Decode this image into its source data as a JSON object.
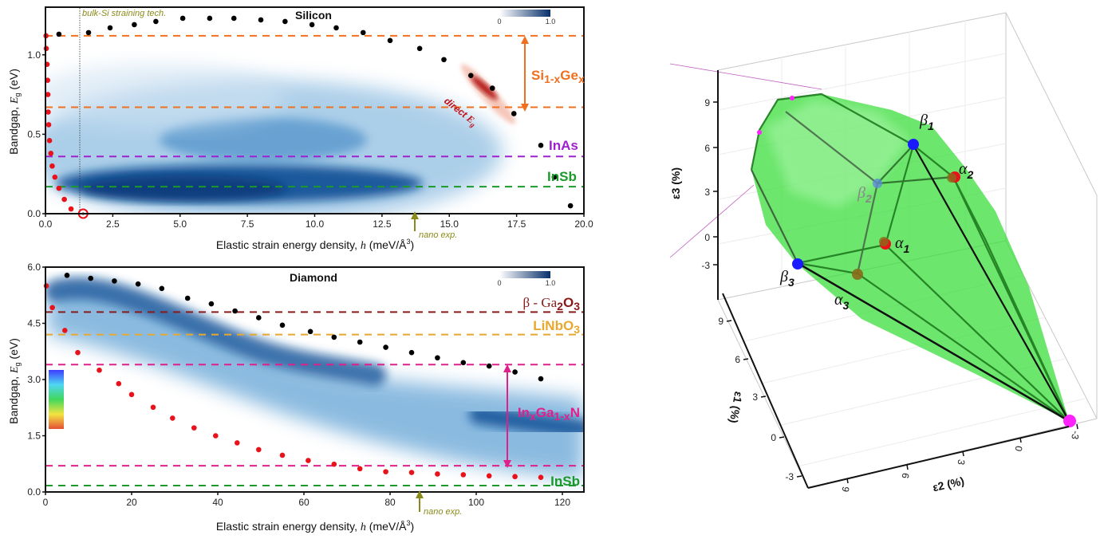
{
  "chart_data": [
    {
      "type": "scatter",
      "panel": "top-left",
      "title": "Silicon",
      "xlabel": "Elastic strain energy density, h (meV/Å³)",
      "ylabel": "Bandgap, E_g (eV)",
      "ylabel_prefix": "Bandgap, ",
      "ylabel_sym": "E",
      "ylabel_sub": "g",
      "ylabel_unit": " (eV)",
      "xlabel_prefix": "Elastic strain energy density, ",
      "xlabel_sym": "h",
      "xlabel_unit": " (meV/Å",
      "xlabel_sup": "3",
      "xlabel_close": ")",
      "xlim": [
        0,
        20
      ],
      "ylim": [
        0,
        1.3
      ],
      "xticks": [
        0.0,
        2.5,
        5.0,
        7.5,
        10.0,
        12.5,
        15.0,
        17.5,
        20.0
      ],
      "xtick_labels": [
        "0.0",
        "2.5",
        "5.0",
        "7.5",
        "10.0",
        "12.5",
        "15.0",
        "17.5",
        "20.0"
      ],
      "yticks": [
        0.0,
        0.5,
        1.0
      ],
      "ytick_labels": [
        "0.0",
        "0.5",
        "1.0"
      ],
      "colorbar": {
        "min_label": "0",
        "max_label": "1.0",
        "colormap": "Blues"
      },
      "series": [
        {
          "name": "max bandgap",
          "color": "#000000",
          "x": [
            0.5,
            1.6,
            2.4,
            3.3,
            4.1,
            5.1,
            6.1,
            7.0,
            8.0,
            8.9,
            9.9,
            10.8,
            11.8,
            12.8,
            13.9,
            14.8,
            15.8,
            16.6,
            17.4,
            18.4,
            18.9,
            19.5
          ],
          "y": [
            1.13,
            1.14,
            1.17,
            1.19,
            1.21,
            1.23,
            1.23,
            1.23,
            1.22,
            1.21,
            1.19,
            1.17,
            1.14,
            1.09,
            1.04,
            0.97,
            0.87,
            0.79,
            0.63,
            0.43,
            0.23,
            0.05
          ]
        },
        {
          "name": "min bandgap",
          "color": "#e8121b",
          "x": [
            0.02,
            0.03,
            0.06,
            0.08,
            0.09,
            0.1,
            0.12,
            0.15,
            0.2,
            0.25,
            0.35,
            0.5,
            0.7,
            0.95
          ],
          "y": [
            1.12,
            1.04,
            0.94,
            0.84,
            0.75,
            0.64,
            0.56,
            0.46,
            0.38,
            0.3,
            0.23,
            0.16,
            0.09,
            0.03
          ]
        },
        {
          "name": "metallization point",
          "marker": "open-circle",
          "color": "#e8121b",
          "x": [
            1.4
          ],
          "y": [
            0.0
          ]
        }
      ],
      "reference_lines": [
        {
          "label": "Si1-xGe_x upper",
          "y": 1.12,
          "color": "#f07020"
        },
        {
          "label": "Si1-xGe_x lower",
          "y": 0.67,
          "color": "#f07020"
        },
        {
          "label": "InAs",
          "y": 0.36,
          "color": "#a020d0"
        },
        {
          "label": "InSb",
          "y": 0.17,
          "color": "#1a9a2a"
        }
      ],
      "vertical_marker": {
        "x": 1.3,
        "label": "bulk-Si straining tech."
      },
      "arrow_marker": {
        "x": 13.7,
        "label": "nano exp."
      },
      "annotations": {
        "sige_base": "Si",
        "sige_sub1": "1-x",
        "sige_mid": "Ge",
        "sige_sub2": "x",
        "inas": "InAs",
        "insb": "InSb",
        "direct": "direct ",
        "direct_sym": "E",
        "direct_sub": "g"
      }
    },
    {
      "type": "scatter",
      "panel": "bottom-left",
      "title": "Diamond",
      "xlabel": "Elastic strain energy density, h (meV/Å³)",
      "ylabel": "Bandgap, E_g (eV)",
      "xlim": [
        0,
        125
      ],
      "ylim": [
        0,
        6.0
      ],
      "xticks": [
        0,
        20,
        40,
        60,
        80,
        100,
        120
      ],
      "xtick_labels": [
        "0",
        "20",
        "40",
        "60",
        "80",
        "100",
        "120"
      ],
      "yticks": [
        0.0,
        1.5,
        3.0,
        4.5,
        6.0
      ],
      "ytick_labels": [
        "0.0",
        "1.5",
        "3.0",
        "4.5",
        "6.0"
      ],
      "colorbar": {
        "min_label": "0",
        "max_label": "1.0",
        "colormap": "Blues"
      },
      "series": [
        {
          "name": "max bandgap",
          "color": "#000000",
          "x": [
            5,
            10.5,
            16,
            21.5,
            27,
            33,
            38.5,
            44,
            49.5,
            55,
            61.5,
            67,
            73,
            79,
            85,
            91,
            97,
            103,
            109,
            115
          ],
          "y": [
            5.78,
            5.7,
            5.63,
            5.55,
            5.43,
            5.17,
            5.02,
            4.83,
            4.65,
            4.45,
            4.28,
            4.13,
            4.0,
            3.86,
            3.72,
            3.58,
            3.45,
            3.36,
            3.2,
            3.02
          ]
        },
        {
          "name": "min bandgap",
          "color": "#e8121b",
          "x": [
            0.2,
            1.6,
            4.5,
            7.5,
            12.5,
            17,
            20,
            25,
            29.5,
            34.5,
            39.5,
            44.5,
            49.5,
            55,
            61,
            67,
            73,
            79,
            85,
            91,
            97,
            103,
            109,
            115
          ],
          "y": [
            5.5,
            4.92,
            4.31,
            3.72,
            3.25,
            2.89,
            2.6,
            2.26,
            1.97,
            1.71,
            1.5,
            1.31,
            1.13,
            0.98,
            0.84,
            0.74,
            0.62,
            0.54,
            0.52,
            0.48,
            0.46,
            0.43,
            0.41,
            0.39
          ]
        }
      ],
      "reference_lines": [
        {
          "label": "β-Ga2O3",
          "y": 4.8,
          "color": "#8a1a1a"
        },
        {
          "label": "LiNbO3",
          "y": 4.2,
          "color": "#e8a830"
        },
        {
          "label": "InxGa1-xN upper",
          "y": 3.4,
          "color": "#e0208a"
        },
        {
          "label": "InxGa1-xN lower",
          "y": 0.7,
          "color": "#e0208a"
        },
        {
          "label": "InSb",
          "y": 0.17,
          "color": "#1a9a2a"
        }
      ],
      "arrow_marker": {
        "x": 87,
        "label": "nano exp."
      },
      "annotations": {
        "ga2o3_a": "β - Ga",
        "ga2o3_s1": "2",
        "ga2o3_b": "O",
        "ga2o3_s2": "3",
        "linbo3_a": "LiNbO",
        "linbo3_s": "3",
        "ingan_a": "In",
        "ingan_s1": "x",
        "ingan_b": "Ga",
        "ingan_s2": "1-x",
        "ingan_c": "N",
        "insb": "InSb"
      }
    },
    {
      "type": "3d-polyhedron",
      "panel": "right",
      "xlabel": "ε1 (%)",
      "ylabel": "ε2 (%)",
      "zlabel": "ε3 (%)",
      "zticks": [
        "-3",
        "0",
        "3",
        "6",
        "9"
      ],
      "e1ticks": [
        "-3",
        "0",
        "3",
        "6",
        "9"
      ],
      "e2ticks": [
        "9",
        "6",
        "3",
        "0",
        "-3"
      ],
      "surface_color": "#2ee02e",
      "vertex_labels": [
        {
          "sym": "β",
          "sub": "1",
          "color": "#1a1aff"
        },
        {
          "sym": "β",
          "sub": "2",
          "color": "#5b8cd6"
        },
        {
          "sym": "β",
          "sub": "3",
          "color": "#1a1aff"
        },
        {
          "sym": "α",
          "sub": "1",
          "color": "#e8121b"
        },
        {
          "sym": "α",
          "sub": "2",
          "color": "#e8121b"
        },
        {
          "sym": "α",
          "sub": "3",
          "color": "#8a6a1a"
        }
      ],
      "apex_color": "#ff22ff"
    }
  ]
}
